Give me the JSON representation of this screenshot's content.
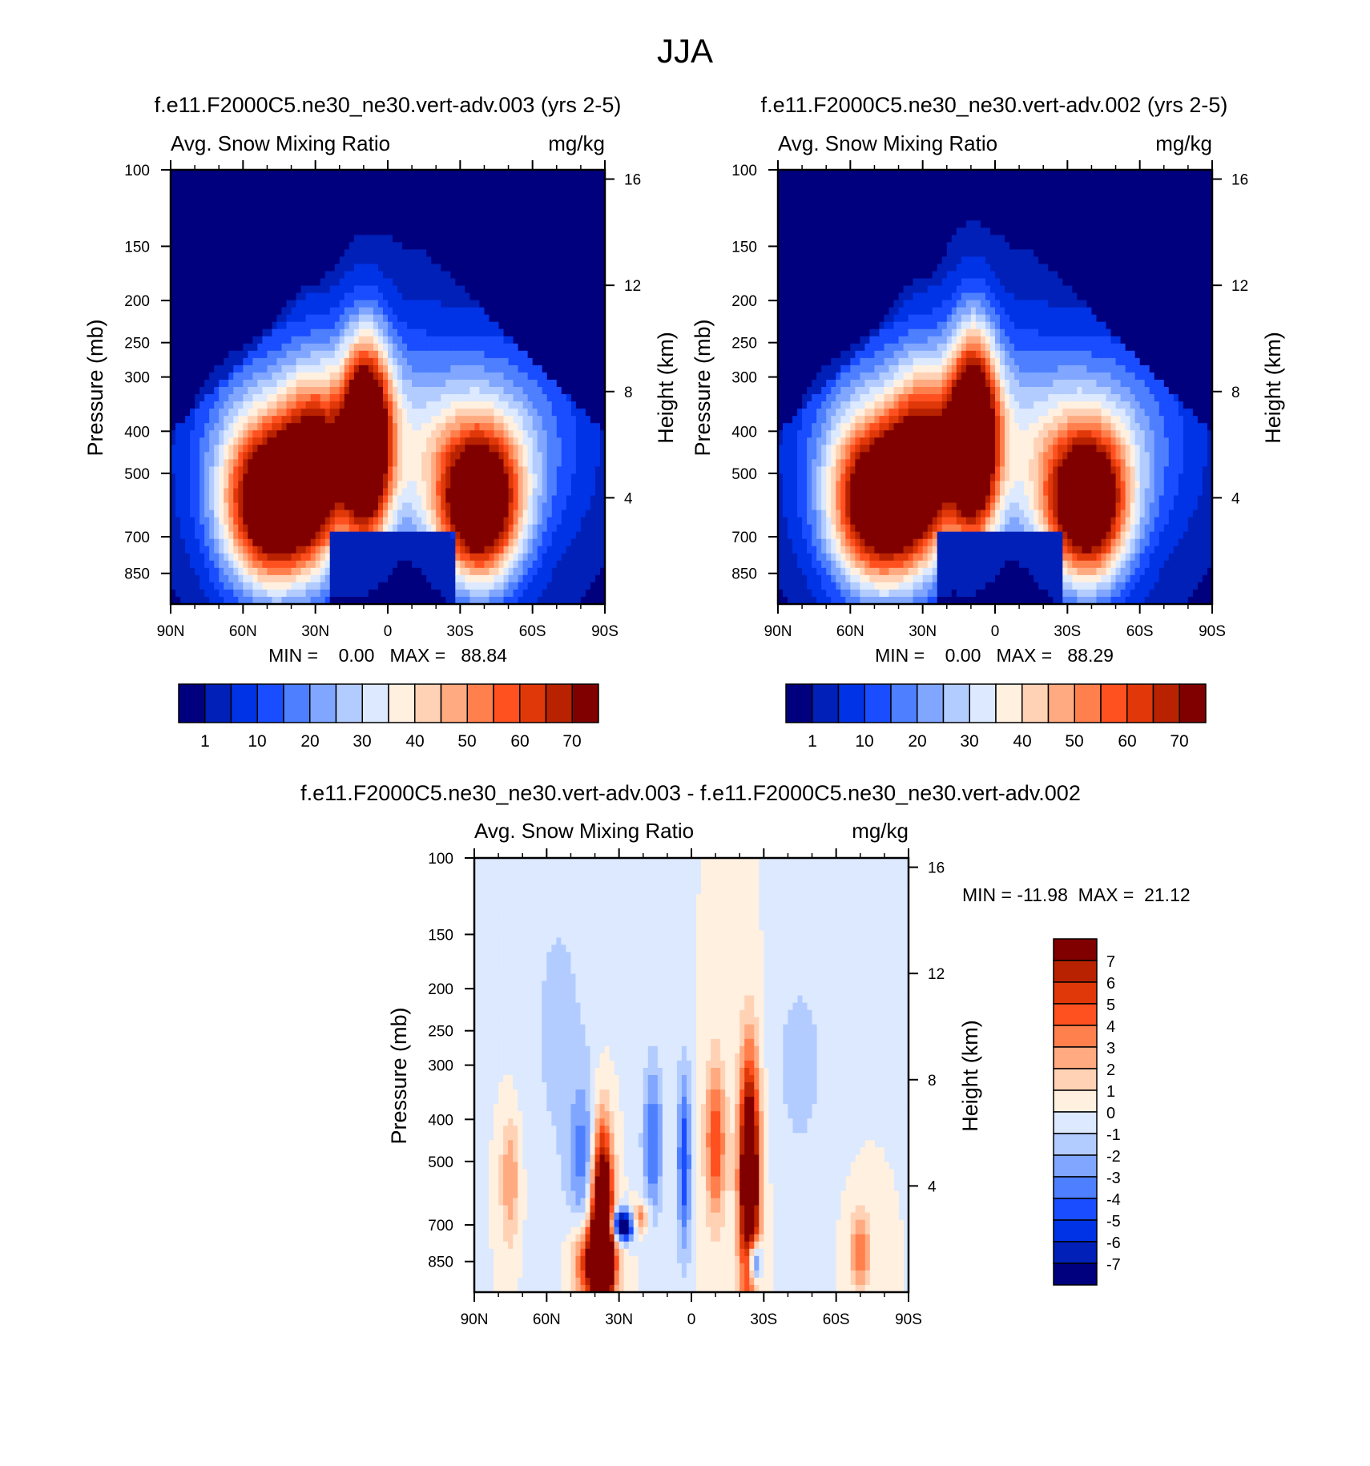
{
  "page_title": "JJA",
  "colors": {
    "ramp16": [
      "#00007f",
      "#0020b8",
      "#0033e6",
      "#1a4dff",
      "#4d7fff",
      "#80a6ff",
      "#b3ccff",
      "#dce9ff",
      "#fff0e0",
      "#ffd2b5",
      "#ffaa80",
      "#ff7f4d",
      "#ff5020",
      "#e03808",
      "#b82200",
      "#800000"
    ],
    "diff_ramp": [
      "#00007f",
      "#0020b8",
      "#0033e6",
      "#1a4dff",
      "#4d7fff",
      "#80a6ff",
      "#b3ccff",
      "#dce9ff",
      "#fff0e0",
      "#ffd2b5",
      "#ffaa80",
      "#ff7f4d",
      "#ff5020",
      "#e03808",
      "#b82200",
      "#800000"
    ]
  },
  "panels": [
    {
      "title": "f.e11.F2000C5.ne30_ne30.vert-adv.003 (yrs 2-5)",
      "left_string": "Avg. Snow Mixing Ratio",
      "right_string": "mg/kg",
      "y_label": "Pressure (mb)",
      "y2_label": "Height (km)",
      "min_max": "MIN =    0.00   MAX =   88.84",
      "colorbar_labels": [
        "1",
        "10",
        "20",
        "30",
        "40",
        "50",
        "60",
        "70"
      ]
    },
    {
      "title": "f.e11.F2000C5.ne30_ne30.vert-adv.002 (yrs 2-5)",
      "left_string": "Avg. Snow Mixing Ratio",
      "right_string": "mg/kg",
      "y_label": "Pressure (mb)",
      "y2_label": "Height (km)",
      "min_max": "MIN =    0.00   MAX =   88.29",
      "colorbar_labels": [
        "1",
        "10",
        "20",
        "30",
        "40",
        "50",
        "60",
        "70"
      ]
    },
    {
      "title": "f.e11.F2000C5.ne30_ne30.vert-adv.003 - f.e11.F2000C5.ne30_ne30.vert-adv.002",
      "left_string": "Avg. Snow Mixing Ratio",
      "right_string": "mg/kg",
      "y_label": "Pressure (mb)",
      "y2_label": "Height (km)",
      "min_max": "MIN = -11.98  MAX =  21.12",
      "colorbar_labels": [
        "7",
        "6",
        "5",
        "4",
        "3",
        "2",
        "1",
        "0",
        "-1",
        "-2",
        "-3",
        "-4",
        "-5",
        "-6",
        "-7"
      ]
    }
  ],
  "chart_data": [
    {
      "type": "heatmap",
      "title": "f.e11.F2000C5.ne30_ne30.vert-adv.003 (yrs 2-5)",
      "xlabel": "",
      "ylabel": "Pressure (mb)",
      "y2label": "Height (km)",
      "x_ticks": [
        "90N",
        "60N",
        "30N",
        "0",
        "30S",
        "60S",
        "90S"
      ],
      "x_tick_values": [
        90,
        60,
        30,
        0,
        -30,
        -60,
        -90
      ],
      "y_ticks": [
        100,
        150,
        200,
        250,
        300,
        400,
        500,
        700,
        850
      ],
      "y2_ticks": [
        4,
        8,
        12,
        16
      ],
      "xlim": [
        90,
        -90
      ],
      "ylim": [
        100,
        1000
      ],
      "log_y": true,
      "levels": [
        1,
        5,
        10,
        15,
        20,
        25,
        30,
        35,
        40,
        45,
        50,
        55,
        60,
        65,
        70
      ],
      "min": 0.0,
      "max": 88.84,
      "blobs": [
        {
          "lat": 48,
          "p": 600,
          "sx": 14,
          "sy": 0.3,
          "amp": 82
        },
        {
          "lat": 30,
          "p": 480,
          "sx": 9,
          "sy": 0.35,
          "amp": 40
        },
        {
          "lat": 9,
          "p": 420,
          "sx": 7,
          "sy": 0.37,
          "amp": 88
        },
        {
          "lat": -38,
          "p": 600,
          "sx": 12,
          "sy": 0.28,
          "amp": 84
        }
      ]
    },
    {
      "type": "heatmap",
      "title": "f.e11.F2000C5.ne30_ne30.vert-adv.002 (yrs 2-5)",
      "xlabel": "",
      "ylabel": "Pressure (mb)",
      "y2label": "Height (km)",
      "x_ticks": [
        "90N",
        "60N",
        "30N",
        "0",
        "30S",
        "60S",
        "90S"
      ],
      "x_tick_values": [
        90,
        60,
        30,
        0,
        -30,
        -60,
        -90
      ],
      "y_ticks": [
        100,
        150,
        200,
        250,
        300,
        400,
        500,
        700,
        850
      ],
      "y2_ticks": [
        4,
        8,
        12,
        16
      ],
      "xlim": [
        90,
        -90
      ],
      "ylim": [
        100,
        1000
      ],
      "log_y": true,
      "levels": [
        1,
        5,
        10,
        15,
        20,
        25,
        30,
        35,
        40,
        45,
        50,
        55,
        60,
        65,
        70
      ],
      "min": 0.0,
      "max": 88.29,
      "blobs": [
        {
          "lat": 48,
          "p": 600,
          "sx": 14,
          "sy": 0.3,
          "amp": 80
        },
        {
          "lat": 30,
          "p": 470,
          "sx": 9,
          "sy": 0.35,
          "amp": 42
        },
        {
          "lat": 9,
          "p": 410,
          "sx": 7,
          "sy": 0.38,
          "amp": 88
        },
        {
          "lat": -38,
          "p": 600,
          "sx": 12,
          "sy": 0.28,
          "amp": 83
        }
      ]
    },
    {
      "type": "heatmap",
      "title": "f.e11.F2000C5.ne30_ne30.vert-adv.003 - f.e11.F2000C5.ne30_ne30.vert-adv.002",
      "xlabel": "",
      "ylabel": "Pressure (mb)",
      "y2label": "Height (km)",
      "x_ticks": [
        "90N",
        "60N",
        "30N",
        "0",
        "30S",
        "60S",
        "90S"
      ],
      "x_tick_values": [
        90,
        60,
        30,
        0,
        -30,
        -60,
        -90
      ],
      "y_ticks": [
        100,
        150,
        200,
        250,
        300,
        400,
        500,
        700,
        850
      ],
      "y2_ticks": [
        4,
        8,
        12,
        16
      ],
      "xlim": [
        90,
        -90
      ],
      "ylim": [
        100,
        1000
      ],
      "log_y": true,
      "levels": [
        -7,
        -6,
        -5,
        -4,
        -3,
        -2,
        -1,
        0,
        1,
        2,
        3,
        4,
        5,
        6,
        7
      ],
      "min": -11.98,
      "max": 21.12,
      "blobs": [
        {
          "lat": 37,
          "p": 700,
          "sx": 3,
          "sy": 0.35,
          "amp": 14
        },
        {
          "lat": 40,
          "p": 850,
          "sx": 6,
          "sy": 0.15,
          "amp": 8
        },
        {
          "lat": 28,
          "p": 700,
          "sx": 4,
          "sy": 0.06,
          "amp": -10
        },
        {
          "lat": 22,
          "p": 680,
          "sx": 3,
          "sy": 0.06,
          "amp": 6
        },
        {
          "lat": 16,
          "p": 450,
          "sx": 3,
          "sy": 0.3,
          "amp": -4
        },
        {
          "lat": 3,
          "p": 500,
          "sx": 2,
          "sy": 0.35,
          "amp": -5
        },
        {
          "lat": -10,
          "p": 450,
          "sx": 3,
          "sy": 0.3,
          "amp": 5
        },
        {
          "lat": -24,
          "p": 550,
          "sx": 3,
          "sy": 0.45,
          "amp": 12
        },
        {
          "lat": -26,
          "p": 850,
          "sx": 2,
          "sy": 0.08,
          "amp": -8
        },
        {
          "lat": 75,
          "p": 550,
          "sx": 3,
          "sy": 0.25,
          "amp": 3
        },
        {
          "lat": -70,
          "p": 800,
          "sx": 3,
          "sy": 0.15,
          "amp": 4
        },
        {
          "lat": 45,
          "p": 500,
          "sx": 4,
          "sy": 0.3,
          "amp": -3
        },
        {
          "lat": -45,
          "p": 300,
          "sx": 8,
          "sy": 0.4,
          "amp": -1.5
        },
        {
          "lat": 55,
          "p": 250,
          "sx": 12,
          "sy": 0.8,
          "amp": -1.2
        }
      ]
    }
  ]
}
